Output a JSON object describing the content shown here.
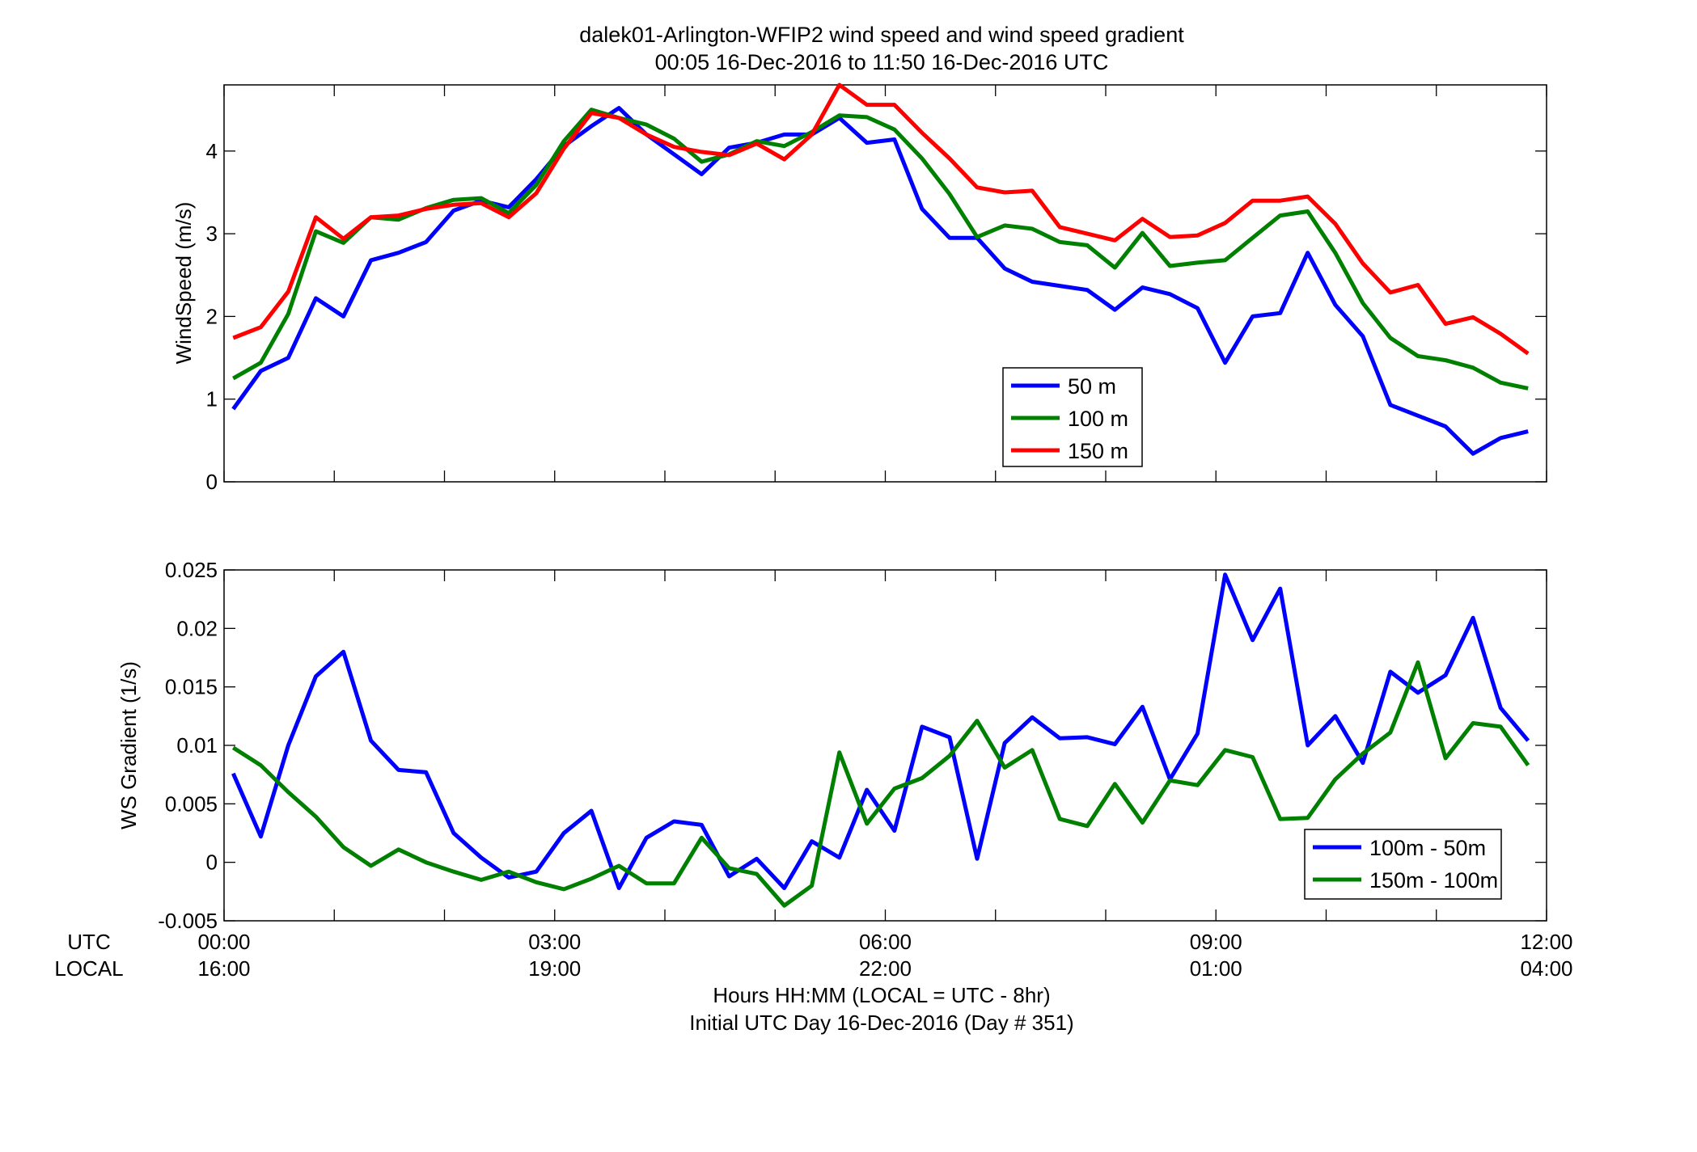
{
  "title": {
    "line1": "dalek01-Arlington-WFIP2  wind speed and wind speed gradient",
    "line2": "00:05 16-Dec-2016 to 11:50 16-Dec-2016  UTC"
  },
  "x_axis": {
    "row_labels": [
      "UTC",
      "LOCAL"
    ],
    "utc_ticks": [
      "00:00",
      "03:00",
      "06:00",
      "09:00",
      "12:00"
    ],
    "local_ticks": [
      "16:00",
      "19:00",
      "22:00",
      "01:00",
      "04:00"
    ],
    "xlabel_line1": "Hours HH:MM  (LOCAL = UTC - 8hr)",
    "xlabel_line2": "Initial UTC Day 16-Dec-2016 (Day # 351)"
  },
  "colors": {
    "blue": "#0000ff",
    "green": "#008000",
    "red": "#ff0000"
  },
  "chart_data": [
    {
      "type": "line",
      "ylabel": "WindSpeed (m/s)",
      "xlim": [
        0,
        12
      ],
      "ylim": [
        0,
        4.8
      ],
      "yticks": [
        "0",
        "1",
        "2",
        "3",
        "4"
      ],
      "yticks_values": [
        0,
        1,
        2,
        3,
        4
      ],
      "x_unit": "hours UTC",
      "x": [
        0.083,
        0.333,
        0.583,
        0.833,
        1.083,
        1.333,
        1.583,
        1.833,
        2.083,
        2.333,
        2.583,
        2.833,
        3.083,
        3.333,
        3.583,
        3.833,
        4.083,
        4.333,
        4.583,
        4.833,
        5.083,
        5.333,
        5.583,
        5.833,
        6.083,
        6.333,
        6.583,
        6.833,
        7.083,
        7.333,
        7.583,
        7.833,
        8.083,
        8.333,
        8.583,
        8.833,
        9.083,
        9.333,
        9.583,
        9.833,
        10.083,
        10.333,
        10.583,
        10.833,
        11.083,
        11.333,
        11.583,
        11.833
      ],
      "legend_position": "center-right",
      "series": [
        {
          "name": "50 m",
          "color": "#0000ff",
          "values": [
            0.88,
            1.34,
            1.5,
            2.22,
            2.0,
            2.68,
            2.77,
            2.9,
            3.28,
            3.4,
            3.32,
            3.66,
            4.06,
            4.3,
            4.52,
            4.2,
            3.96,
            3.72,
            4.04,
            4.1,
            4.2,
            4.2,
            4.4,
            4.1,
            4.14,
            3.3,
            2.95,
            2.95,
            2.58,
            2.42,
            2.37,
            2.32,
            2.08,
            2.35,
            2.27,
            2.1,
            1.44,
            2.0,
            2.04,
            2.77,
            2.14,
            1.76,
            0.93,
            0.8,
            0.67,
            0.34,
            0.53,
            0.61
          ]
        },
        {
          "name": "100 m",
          "color": "#008000",
          "values": [
            1.25,
            1.44,
            2.03,
            3.03,
            2.89,
            3.2,
            3.17,
            3.31,
            3.41,
            3.43,
            3.25,
            3.59,
            4.12,
            4.5,
            4.4,
            4.32,
            4.15,
            3.87,
            3.96,
            4.12,
            4.06,
            4.23,
            4.43,
            4.41,
            4.26,
            3.91,
            3.48,
            2.96,
            3.1,
            3.06,
            2.9,
            2.86,
            2.59,
            3.01,
            2.61,
            2.65,
            2.68,
            2.95,
            3.22,
            3.27,
            2.77,
            2.16,
            1.74,
            1.52,
            1.47,
            1.38,
            1.2,
            1.13
          ]
        },
        {
          "name": "150 m",
          "color": "#ff0000",
          "values": [
            1.74,
            1.87,
            2.3,
            3.2,
            2.94,
            3.2,
            3.22,
            3.3,
            3.35,
            3.37,
            3.2,
            3.49,
            4.03,
            4.46,
            4.4,
            4.2,
            4.05,
            3.99,
            3.95,
            4.09,
            3.9,
            4.2,
            4.8,
            4.56,
            4.56,
            4.22,
            3.91,
            3.56,
            3.5,
            3.52,
            3.08,
            3.0,
            2.92,
            3.18,
            2.96,
            2.98,
            3.13,
            3.4,
            3.4,
            3.45,
            3.12,
            2.64,
            2.29,
            2.38,
            1.91,
            1.99,
            1.79,
            1.55
          ]
        }
      ]
    },
    {
      "type": "line",
      "ylabel": "WS Gradient (1/s)",
      "xlim": [
        0,
        12
      ],
      "ylim": [
        -0.005,
        0.025
      ],
      "yticks": [
        "-0.005",
        "0",
        "0.005",
        "0.01",
        "0.015",
        "0.02",
        "0.025"
      ],
      "yticks_values": [
        -0.005,
        0,
        0.005,
        0.01,
        0.015,
        0.02,
        0.025
      ],
      "x_unit": "hours UTC",
      "x": [
        0.083,
        0.333,
        0.583,
        0.833,
        1.083,
        1.333,
        1.583,
        1.833,
        2.083,
        2.333,
        2.583,
        2.833,
        3.083,
        3.333,
        3.583,
        3.833,
        4.083,
        4.333,
        4.583,
        4.833,
        5.083,
        5.333,
        5.583,
        5.833,
        6.083,
        6.333,
        6.583,
        6.833,
        7.083,
        7.333,
        7.583,
        7.833,
        8.083,
        8.333,
        8.583,
        8.833,
        9.083,
        9.333,
        9.583,
        9.833,
        10.083,
        10.333,
        10.583,
        10.833,
        11.083,
        11.333,
        11.583,
        11.833
      ],
      "legend_position": "bottom-right",
      "series": [
        {
          "name": "100m - 50m",
          "color": "#0000ff",
          "values": [
            0.0076,
            0.0022,
            0.01,
            0.0159,
            0.018,
            0.0104,
            0.0079,
            0.0077,
            0.0025,
            0.0004,
            -0.0013,
            -0.0008,
            0.0025,
            0.0044,
            -0.0022,
            0.0021,
            0.0035,
            0.0032,
            -0.0012,
            0.0003,
            -0.0022,
            0.0018,
            0.0004,
            0.0062,
            0.0027,
            0.0116,
            0.0107,
            0.0003,
            0.0102,
            0.0124,
            0.0106,
            0.0107,
            0.0101,
            0.0133,
            0.0071,
            0.011,
            0.0246,
            0.019,
            0.0234,
            0.01,
            0.0125,
            0.0085,
            0.0163,
            0.0145,
            0.016,
            0.0209,
            0.0132,
            0.0104
          ]
        },
        {
          "name": "150m - 100m",
          "color": "#008000",
          "values": [
            0.0098,
            0.0083,
            0.006,
            0.0039,
            0.0013,
            -0.0003,
            0.0011,
            0.0,
            -0.0008,
            -0.0015,
            -0.0008,
            -0.0017,
            -0.0023,
            -0.0014,
            -0.0003,
            -0.0018,
            -0.0018,
            0.0021,
            -0.0005,
            -0.001,
            -0.0037,
            -0.002,
            0.0094,
            0.0033,
            0.0063,
            0.0072,
            0.0091,
            0.0121,
            0.0081,
            0.0096,
            0.0037,
            0.0031,
            0.0067,
            0.0034,
            0.007,
            0.0066,
            0.0096,
            0.009,
            0.0037,
            0.0038,
            0.0071,
            0.0093,
            0.0111,
            0.0171,
            0.0089,
            0.0119,
            0.0116,
            0.0083
          ]
        }
      ]
    }
  ]
}
